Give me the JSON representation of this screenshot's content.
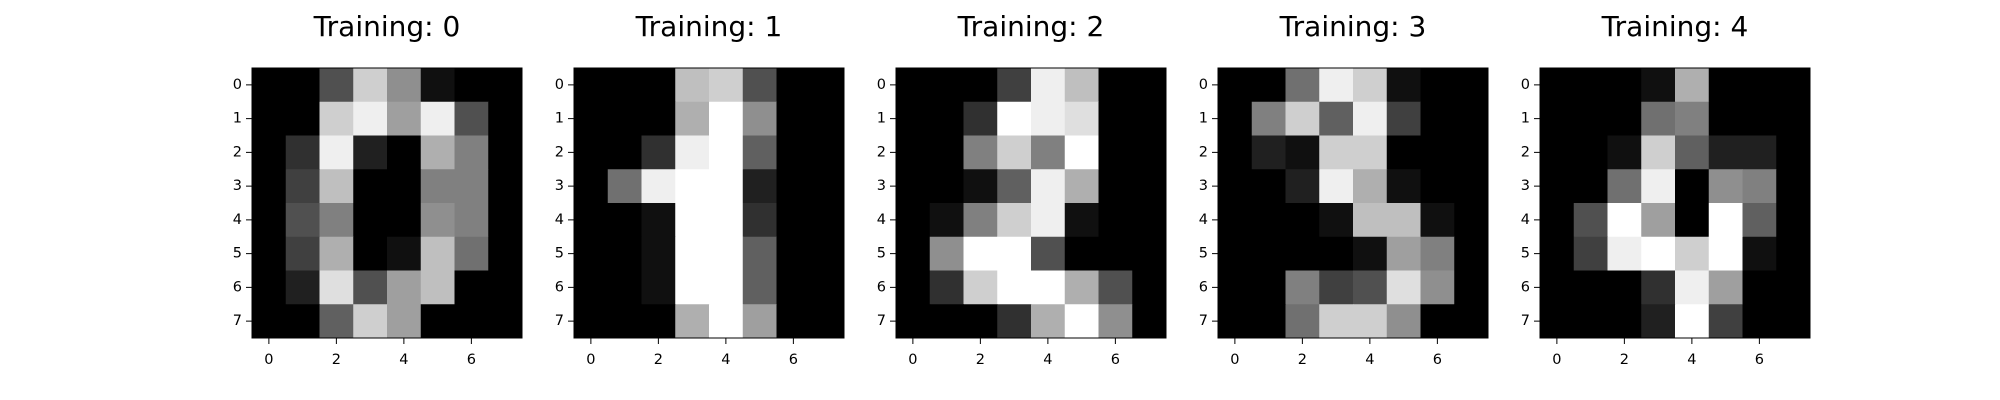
{
  "chart_data": [
    {
      "type": "heatmap",
      "title": "Training: 0",
      "colormap": "gray",
      "value_range": [
        0,
        16
      ],
      "x_ticks": [
        "0",
        "2",
        "4",
        "6"
      ],
      "y_ticks": [
        "0",
        "1",
        "2",
        "3",
        "4",
        "5",
        "6",
        "7"
      ],
      "values": [
        [
          0,
          0,
          5,
          13,
          9,
          1,
          0,
          0
        ],
        [
          0,
          0,
          13,
          15,
          10,
          15,
          5,
          0
        ],
        [
          0,
          3,
          15,
          2,
          0,
          11,
          8,
          0
        ],
        [
          0,
          4,
          12,
          0,
          0,
          8,
          8,
          0
        ],
        [
          0,
          5,
          8,
          0,
          0,
          9,
          8,
          0
        ],
        [
          0,
          4,
          11,
          0,
          1,
          12,
          7,
          0
        ],
        [
          0,
          2,
          14,
          5,
          10,
          12,
          0,
          0
        ],
        [
          0,
          0,
          6,
          13,
          10,
          0,
          0,
          0
        ]
      ]
    },
    {
      "type": "heatmap",
      "title": "Training: 1",
      "colormap": "gray",
      "value_range": [
        0,
        16
      ],
      "x_ticks": [
        "0",
        "2",
        "4",
        "6"
      ],
      "y_ticks": [
        "0",
        "1",
        "2",
        "3",
        "4",
        "5",
        "6",
        "7"
      ],
      "values": [
        [
          0,
          0,
          0,
          12,
          13,
          5,
          0,
          0
        ],
        [
          0,
          0,
          0,
          11,
          16,
          9,
          0,
          0
        ],
        [
          0,
          0,
          3,
          15,
          16,
          6,
          0,
          0
        ],
        [
          0,
          7,
          15,
          16,
          16,
          2,
          0,
          0
        ],
        [
          0,
          0,
          1,
          16,
          16,
          3,
          0,
          0
        ],
        [
          0,
          0,
          1,
          16,
          16,
          6,
          0,
          0
        ],
        [
          0,
          0,
          1,
          16,
          16,
          6,
          0,
          0
        ],
        [
          0,
          0,
          0,
          11,
          16,
          10,
          0,
          0
        ]
      ]
    },
    {
      "type": "heatmap",
      "title": "Training: 2",
      "colormap": "gray",
      "value_range": [
        0,
        16
      ],
      "x_ticks": [
        "0",
        "2",
        "4",
        "6"
      ],
      "y_ticks": [
        "0",
        "1",
        "2",
        "3",
        "4",
        "5",
        "6",
        "7"
      ],
      "values": [
        [
          0,
          0,
          0,
          4,
          15,
          12,
          0,
          0
        ],
        [
          0,
          0,
          3,
          16,
          15,
          14,
          0,
          0
        ],
        [
          0,
          0,
          8,
          13,
          8,
          16,
          0,
          0
        ],
        [
          0,
          0,
          1,
          6,
          15,
          11,
          0,
          0
        ],
        [
          0,
          1,
          8,
          13,
          15,
          1,
          0,
          0
        ],
        [
          0,
          9,
          16,
          16,
          5,
          0,
          0,
          0
        ],
        [
          0,
          3,
          13,
          16,
          16,
          11,
          5,
          0
        ],
        [
          0,
          0,
          0,
          3,
          11,
          16,
          9,
          0
        ]
      ]
    },
    {
      "type": "heatmap",
      "title": "Training: 3",
      "colormap": "gray",
      "value_range": [
        0,
        16
      ],
      "x_ticks": [
        "0",
        "2",
        "4",
        "6"
      ],
      "y_ticks": [
        "0",
        "1",
        "2",
        "3",
        "4",
        "5",
        "6",
        "7"
      ],
      "values": [
        [
          0,
          0,
          7,
          15,
          13,
          1,
          0,
          0
        ],
        [
          0,
          8,
          13,
          6,
          15,
          4,
          0,
          0
        ],
        [
          0,
          2,
          1,
          13,
          13,
          0,
          0,
          0
        ],
        [
          0,
          0,
          2,
          15,
          11,
          1,
          0,
          0
        ],
        [
          0,
          0,
          0,
          1,
          12,
          12,
          1,
          0
        ],
        [
          0,
          0,
          0,
          0,
          1,
          10,
          8,
          0
        ],
        [
          0,
          0,
          8,
          4,
          5,
          14,
          9,
          0
        ],
        [
          0,
          0,
          7,
          13,
          13,
          9,
          0,
          0
        ]
      ]
    },
    {
      "type": "heatmap",
      "title": "Training: 4",
      "colormap": "gray",
      "value_range": [
        0,
        16
      ],
      "x_ticks": [
        "0",
        "2",
        "4",
        "6"
      ],
      "y_ticks": [
        "0",
        "1",
        "2",
        "3",
        "4",
        "5",
        "6",
        "7"
      ],
      "values": [
        [
          0,
          0,
          0,
          1,
          11,
          0,
          0,
          0
        ],
        [
          0,
          0,
          0,
          7,
          8,
          0,
          0,
          0
        ],
        [
          0,
          0,
          1,
          13,
          6,
          2,
          2,
          0
        ],
        [
          0,
          0,
          7,
          15,
          0,
          9,
          8,
          0
        ],
        [
          0,
          5,
          16,
          10,
          0,
          16,
          6,
          0
        ],
        [
          0,
          4,
          15,
          16,
          13,
          16,
          1,
          0
        ],
        [
          0,
          0,
          0,
          3,
          15,
          10,
          0,
          0
        ],
        [
          0,
          0,
          0,
          2,
          16,
          4,
          0,
          0
        ]
      ]
    }
  ]
}
